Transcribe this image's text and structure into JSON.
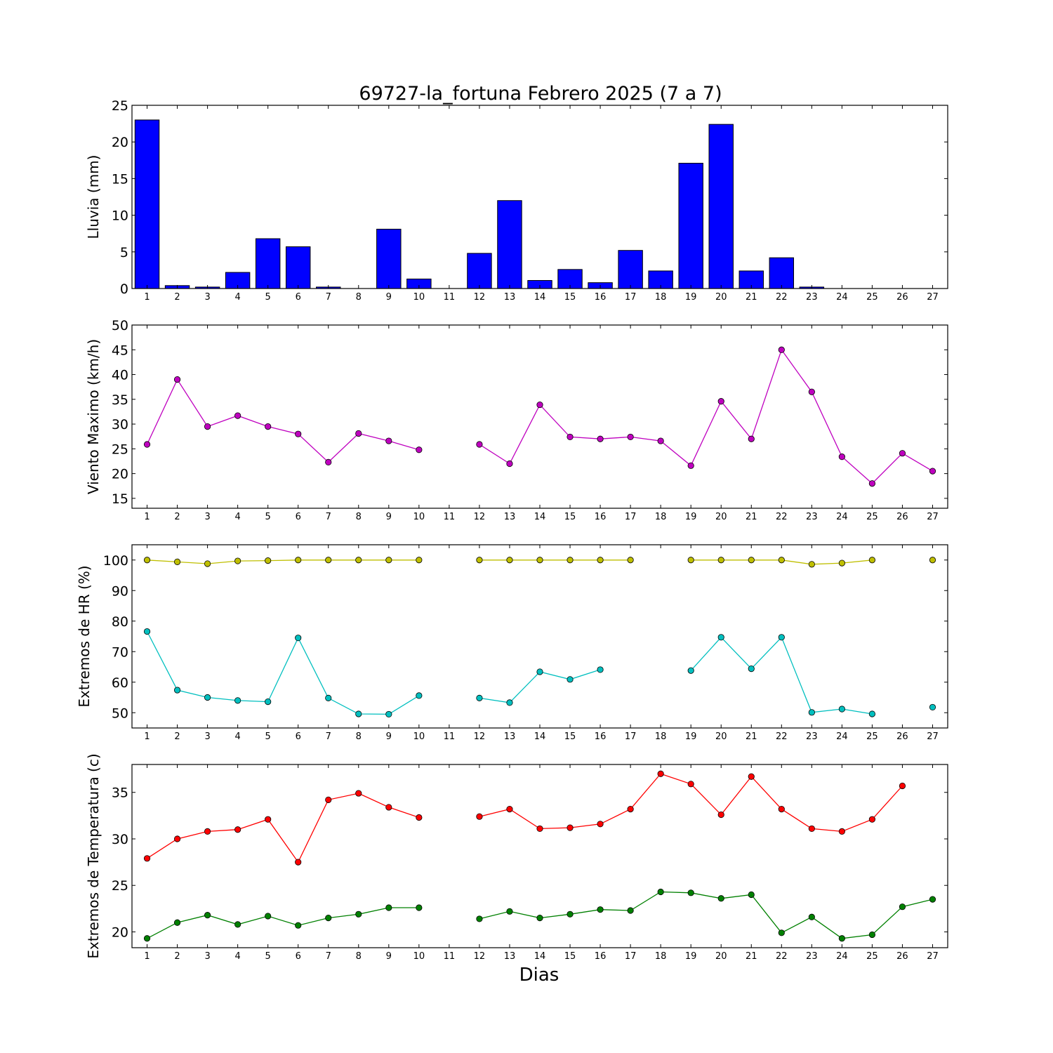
{
  "title": "69727-la_fortuna Febrero 2025  (7 a 7)",
  "xlabel": "Dias",
  "chart_data": [
    {
      "type": "bar",
      "ylabel": "Lluvia (mm)",
      "ylim": [
        0,
        25
      ],
      "yticks": [
        0,
        5,
        10,
        15,
        20,
        25
      ],
      "xlim": [
        0.5,
        27.5
      ],
      "x": [
        1,
        2,
        3,
        4,
        5,
        6,
        7,
        8,
        9,
        10,
        11,
        12,
        13,
        14,
        15,
        16,
        17,
        18,
        19,
        20,
        21,
        22,
        23,
        24,
        25,
        26,
        27
      ],
      "series": [
        {
          "color": "#0000ff",
          "values": [
            23.0,
            0.4,
            0.2,
            2.2,
            6.8,
            5.7,
            0.2,
            0.0,
            8.1,
            1.3,
            null,
            4.8,
            12.0,
            1.1,
            2.6,
            0.8,
            5.2,
            2.4,
            17.1,
            22.4,
            2.4,
            4.2,
            0.2,
            0.0,
            0.0,
            0.0,
            0.0
          ]
        }
      ]
    },
    {
      "type": "line",
      "ylabel": "Viento Maximo (km/h)",
      "ylim": [
        13,
        50
      ],
      "yticks": [
        15,
        20,
        25,
        30,
        35,
        40,
        45,
        50
      ],
      "xlim": [
        0.5,
        27.5
      ],
      "x": [
        1,
        2,
        3,
        4,
        5,
        6,
        7,
        8,
        9,
        10,
        11,
        12,
        13,
        14,
        15,
        16,
        17,
        18,
        19,
        20,
        21,
        22,
        23,
        24,
        25,
        26,
        27
      ],
      "series": [
        {
          "color": "#bf00bf",
          "values": [
            25.9,
            39.0,
            29.5,
            31.7,
            29.5,
            28.0,
            22.3,
            28.1,
            26.6,
            24.8,
            null,
            25.9,
            22.0,
            33.9,
            27.4,
            27.0,
            27.4,
            26.6,
            21.6,
            34.6,
            27.0,
            45.0,
            36.5,
            23.4,
            18.0,
            24.1,
            20.5
          ]
        }
      ]
    },
    {
      "type": "line",
      "ylabel": "Extremos de HR (%)",
      "ylim": [
        45,
        105
      ],
      "yticks": [
        50,
        60,
        70,
        80,
        90,
        100
      ],
      "xlim": [
        0.5,
        27.5
      ],
      "x": [
        1,
        2,
        3,
        4,
        5,
        6,
        7,
        8,
        9,
        10,
        11,
        12,
        13,
        14,
        15,
        16,
        17,
        18,
        19,
        20,
        21,
        22,
        23,
        24,
        25,
        26,
        27
      ],
      "series": [
        {
          "color": "#bfbf00",
          "values": [
            100,
            99.4,
            98.8,
            99.7,
            99.8,
            100,
            100,
            100,
            100,
            100,
            null,
            100,
            100,
            100,
            100,
            100,
            100,
            null,
            100,
            100,
            100,
            100,
            98.6,
            99.0,
            100,
            null,
            100
          ]
        },
        {
          "color": "#00bfbf",
          "values": [
            76.6,
            57.4,
            55.0,
            54.0,
            53.6,
            74.5,
            54.8,
            49.6,
            49.5,
            55.6,
            null,
            54.8,
            53.3,
            63.4,
            60.9,
            64.1,
            null,
            null,
            63.8,
            74.7,
            64.4,
            74.7,
            50.1,
            51.2,
            49.6,
            null,
            51.8
          ]
        }
      ]
    },
    {
      "type": "line",
      "ylabel": "Extremos de Temperatura (c)",
      "ylim": [
        18.3,
        38.0
      ],
      "yticks": [
        20,
        25,
        30,
        35
      ],
      "xlim": [
        0.5,
        27.5
      ],
      "x": [
        1,
        2,
        3,
        4,
        5,
        6,
        7,
        8,
        9,
        10,
        11,
        12,
        13,
        14,
        15,
        16,
        17,
        18,
        19,
        20,
        21,
        22,
        23,
        24,
        25,
        26,
        27
      ],
      "series": [
        {
          "color": "#ff0000",
          "values": [
            27.9,
            30.0,
            30.8,
            31.0,
            32.1,
            27.5,
            34.2,
            34.9,
            33.4,
            32.3,
            null,
            32.4,
            33.2,
            31.1,
            31.2,
            31.6,
            33.2,
            37.0,
            35.9,
            32.6,
            36.7,
            33.2,
            31.1,
            30.8,
            32.1,
            35.7,
            null
          ]
        },
        {
          "color": "#008000",
          "values": [
            19.3,
            21.0,
            21.8,
            20.8,
            21.7,
            20.7,
            21.5,
            21.9,
            22.6,
            22.6,
            null,
            21.4,
            22.2,
            21.5,
            21.9,
            22.4,
            22.3,
            24.3,
            24.2,
            23.6,
            24.0,
            19.9,
            21.6,
            19.3,
            19.7,
            22.7,
            23.5
          ]
        }
      ]
    }
  ]
}
